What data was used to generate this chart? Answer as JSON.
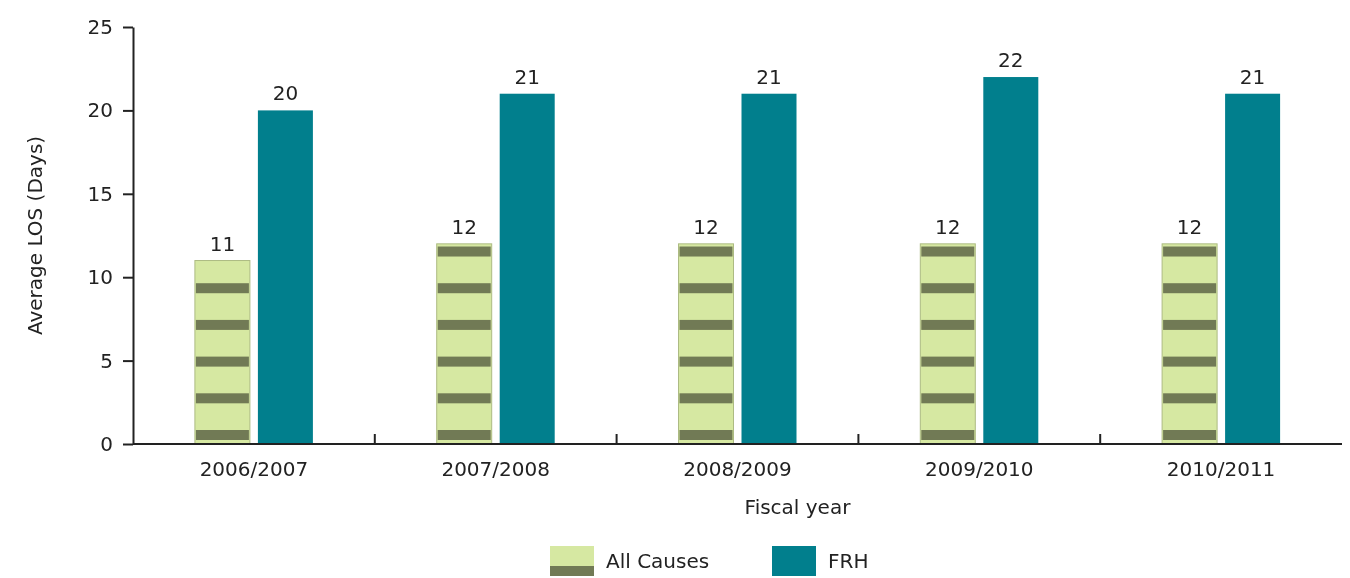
{
  "chart_data": {
    "type": "bar",
    "xlabel": "Fiscal year",
    "ylabel": "Average LOS (Days)",
    "categories": [
      "2006/2007",
      "2007/2008",
      "2008/2009",
      "2009/2010",
      "2010/2011"
    ],
    "series": [
      {
        "name": "All Causes",
        "color": "#d6e8a2",
        "values": [
          11,
          12,
          12,
          12,
          12
        ]
      },
      {
        "name": "FRH",
        "color": "#017f8d",
        "values": [
          20,
          21,
          21,
          22,
          21
        ]
      }
    ],
    "ylim": [
      0,
      25
    ],
    "yticks": [
      0,
      5,
      10,
      15,
      20,
      25
    ],
    "grid": false,
    "legend": "bottom",
    "data_labels": true
  }
}
